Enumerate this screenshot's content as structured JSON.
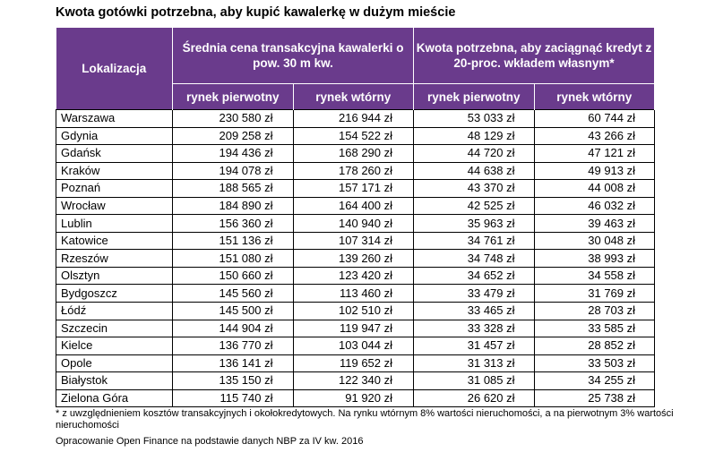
{
  "title": "Kwota gotówki potrzebna, aby kupić kawalerkę w dużym mieście",
  "header": {
    "location": "Lokalizacja",
    "group1": "Średnia cena transakcyjna kawalerki o pow. 30 m kw.",
    "group2": "Kwota potrzebna, aby zaciągnąć kredyt z 20-proc. wkładem własnym*",
    "sub": [
      "rynek pierwotny",
      "rynek wtórny",
      "rynek pierwotny",
      "rynek wtórny"
    ]
  },
  "rows": [
    {
      "city": "Warszawa",
      "vals": [
        "230 580 zł",
        "216 944 zł",
        "53 033 zł",
        "60 744 zł"
      ]
    },
    {
      "city": "Gdynia",
      "vals": [
        "209 258 zł",
        "154 522 zł",
        "48 129 zł",
        "43 266 zł"
      ]
    },
    {
      "city": "Gdańsk",
      "vals": [
        "194 436 zł",
        "168 290 zł",
        "44 720 zł",
        "47 121 zł"
      ]
    },
    {
      "city": "Kraków",
      "vals": [
        "194 078 zł",
        "178 260 zł",
        "44 638 zł",
        "49 913 zł"
      ]
    },
    {
      "city": "Poznań",
      "vals": [
        "188 565 zł",
        "157 171 zł",
        "43 370 zł",
        "44 008 zł"
      ]
    },
    {
      "city": "Wrocław",
      "vals": [
        "184 890 zł",
        "164 400 zł",
        "42 525 zł",
        "46 032 zł"
      ]
    },
    {
      "city": "Lublin",
      "vals": [
        "156 360 zł",
        "140 940 zł",
        "35 963 zł",
        "39 463 zł"
      ]
    },
    {
      "city": "Katowice",
      "vals": [
        "151 136 zł",
        "107 314 zł",
        "34 761 zł",
        "30 048 zł"
      ]
    },
    {
      "city": "Rzeszów",
      "vals": [
        "151 080 zł",
        "139 260 zł",
        "34 748 zł",
        "38 993 zł"
      ]
    },
    {
      "city": "Olsztyn",
      "vals": [
        "150 660 zł",
        "123 420 zł",
        "34 652 zł",
        "34 558 zł"
      ]
    },
    {
      "city": "Bydgoszcz",
      "vals": [
        "145 560 zł",
        "113 460 zł",
        "33 479 zł",
        "31 769 zł"
      ]
    },
    {
      "city": "Łódź",
      "vals": [
        "145 500 zł",
        "102 510 zł",
        "33 465 zł",
        "28 703 zł"
      ]
    },
    {
      "city": "Szczecin",
      "vals": [
        "144 904 zł",
        "119 947 zł",
        "33 328 zł",
        "33 585 zł"
      ]
    },
    {
      "city": "Kielce",
      "vals": [
        "136 770 zł",
        "103 044 zł",
        "31 457 zł",
        "28 852 zł"
      ]
    },
    {
      "city": "Opole",
      "vals": [
        "136 141 zł",
        "119 652 zł",
        "31 313 zł",
        "33 503 zł"
      ]
    },
    {
      "city": "Białystok",
      "vals": [
        "135 150 zł",
        "122 340 zł",
        "31 085 zł",
        "34 255 zł"
      ]
    },
    {
      "city": "Zielona Góra",
      "vals": [
        "115 740 zł",
        "91 920 zł",
        "26 620 zł",
        "25 738 zł"
      ]
    }
  ],
  "footnote": "* z uwzględnieniem kosztów transakcyjnych i okołokredytowych. Na rynku wtórnym 8% wartości nieruchomości, a na pierwotnym 3% wartości nieruchomości",
  "source": "Opracowanie Open Finance na podstawie danych NBP za IV kw. 2016",
  "colors": {
    "header_bg": "#6a3b8c",
    "header_text": "#ffffff"
  }
}
